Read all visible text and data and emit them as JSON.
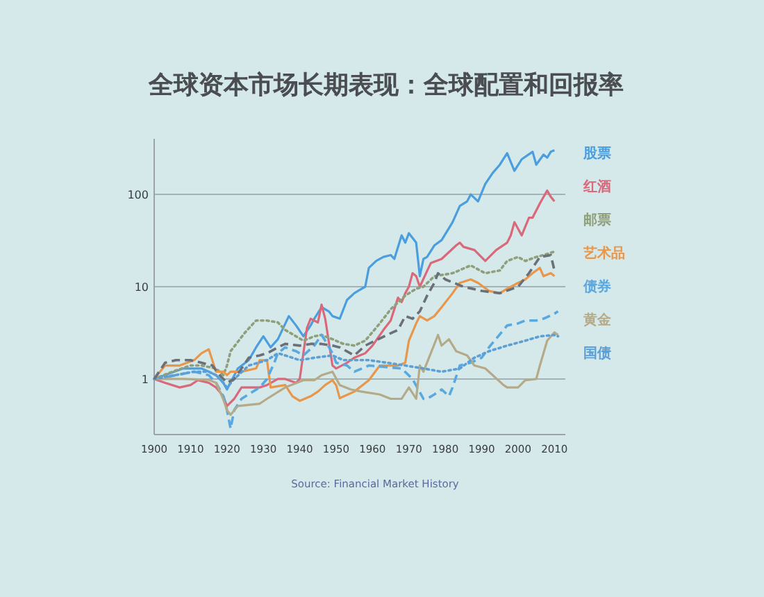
{
  "chart_data": {
    "type": "line",
    "title": "全球资本市场长期表现：全球配置和回报率",
    "annotations": [
      "Source: Financial Market History"
    ],
    "xlim": [
      1900,
      2013
    ],
    "xticks": [
      1900,
      1910,
      1920,
      1930,
      1940,
      1950,
      1960,
      1970,
      1980,
      1990,
      2000,
      2010
    ],
    "ylim": [
      0.25,
      400
    ],
    "yticks": [
      1,
      10,
      100
    ],
    "log": "y",
    "grid": "y",
    "legend": "right",
    "series": [
      {
        "name": "股票",
        "color": "#4a9ee0",
        "line_style": "solid",
        "x": [
          1900,
          1908,
          1913,
          1915,
          1917,
          1919,
          1920,
          1923,
          1926,
          1928,
          1930,
          1932,
          1934,
          1937,
          1939,
          1941,
          1943,
          1944,
          1946,
          1948,
          1949,
          1951,
          1953,
          1955,
          1956,
          1958,
          1959,
          1961,
          1963,
          1965,
          1966,
          1968,
          1969,
          1970,
          1972,
          1973,
          1974,
          1975,
          1977,
          1979,
          1982,
          1984,
          1986,
          1987,
          1989,
          1991,
          1993,
          1995,
          1997,
          1999,
          2001,
          2004,
          2005,
          2007,
          2008,
          2009,
          2010
        ],
        "values": [
          1,
          1.3,
          1.3,
          1.2,
          1.1,
          0.91,
          0.77,
          1.3,
          1.6,
          2.2,
          2.9,
          2.2,
          2.7,
          4.8,
          3.8,
          2.9,
          3.8,
          4.5,
          6,
          5.4,
          4.8,
          4.5,
          7.2,
          8.5,
          9,
          10,
          16,
          19,
          21,
          22,
          20,
          36,
          30,
          38,
          30,
          13,
          20,
          21,
          28,
          32,
          50,
          75,
          84,
          100,
          84,
          130,
          170,
          210,
          280,
          180,
          240,
          290,
          210,
          270,
          250,
          290,
          300
        ]
      },
      {
        "name": "红酒",
        "color": "#d9697a",
        "line_style": "solid",
        "x": [
          1900,
          1903,
          1907,
          1910,
          1912,
          1915,
          1917,
          1919,
          1920,
          1922,
          1924,
          1929,
          1931,
          1934,
          1936,
          1939,
          1940,
          1942,
          1943,
          1945,
          1946,
          1947,
          1949,
          1950,
          1953,
          1955,
          1958,
          1960,
          1963,
          1965,
          1967,
          1968,
          1969,
          1970,
          1971,
          1972,
          1973,
          1976,
          1979,
          1983,
          1984,
          1985,
          1988,
          1991,
          1994,
          1997,
          1998,
          1999,
          2001,
          2003,
          2004,
          2006,
          2008,
          2009,
          2010
        ],
        "values": [
          1,
          0.91,
          0.81,
          0.86,
          0.97,
          0.91,
          0.81,
          0.65,
          0.51,
          0.61,
          0.81,
          0.81,
          0.86,
          1,
          1,
          0.91,
          1,
          3.6,
          4.5,
          4.1,
          6.4,
          4.5,
          1.4,
          1.3,
          1.5,
          1.7,
          1.9,
          2.3,
          3.4,
          4.3,
          7.6,
          6.8,
          8.5,
          10,
          14,
          13,
          10,
          18,
          20,
          28,
          30,
          27,
          25,
          19,
          25,
          30,
          36,
          50,
          36,
          56,
          56,
          80,
          110,
          94,
          84
        ]
      },
      {
        "name": "邮票",
        "color": "#8f9f7c",
        "line_style": "dotted",
        "x": [
          1900,
          1905,
          1910,
          1913,
          1917,
          1919,
          1920,
          1921,
          1925,
          1928,
          1931,
          1934,
          1936,
          1939,
          1941,
          1944,
          1946,
          1949,
          1952,
          1955,
          1958,
          1962,
          1965,
          1969,
          1972,
          1974,
          1977,
          1982,
          1987,
          1991,
          1995,
          1997,
          2000,
          2002,
          2005,
          2007,
          2010
        ],
        "values": [
          1,
          1.2,
          1.4,
          1.4,
          1.3,
          1.1,
          1.4,
          2,
          3.2,
          4.3,
          4.3,
          4.1,
          3.4,
          2.9,
          2.6,
          2.9,
          3,
          2.7,
          2.4,
          2.3,
          2.6,
          4,
          5.7,
          8,
          9.5,
          10,
          13,
          14,
          17,
          14,
          15,
          19,
          21,
          19,
          21,
          22,
          24
        ]
      },
      {
        "name": "艺术品",
        "color": "#e8964a",
        "line_style": "solid",
        "x": [
          1900,
          1903,
          1907,
          1911,
          1913,
          1915,
          1917,
          1919,
          1920,
          1921,
          1924,
          1928,
          1929,
          1931,
          1932,
          1936,
          1938,
          1940,
          1943,
          1945,
          1947,
          1949,
          1950,
          1951,
          1955,
          1959,
          1962,
          1964,
          1967,
          1969,
          1970,
          1972,
          1973,
          1975,
          1977,
          1979,
          1982,
          1984,
          1987,
          1989,
          1992,
          1995,
          1997,
          2000,
          2002,
          2004,
          2006,
          2007,
          2009,
          2010
        ],
        "values": [
          1,
          1.4,
          1.4,
          1.6,
          1.9,
          2.1,
          1.2,
          1.2,
          1.1,
          1.2,
          1.2,
          1.3,
          1.6,
          1.6,
          0.81,
          0.86,
          0.65,
          0.58,
          0.65,
          0.73,
          0.86,
          0.97,
          0.86,
          0.62,
          0.73,
          0.97,
          1.4,
          1.4,
          1.4,
          1.5,
          2.6,
          4,
          4.8,
          4.3,
          4.8,
          6,
          8.5,
          11,
          12,
          11,
          9,
          8.5,
          9.5,
          11,
          12,
          14,
          16,
          13,
          14,
          13
        ]
      },
      {
        "name": "债券",
        "color": "#5aa8e0",
        "line_style": "dashed",
        "x": [
          1900,
          1906,
          1911,
          1915,
          1917,
          1919,
          1920,
          1921,
          1922,
          1924,
          1929,
          1931,
          1933,
          1934,
          1936,
          1939,
          1941,
          1944,
          1946,
          1947,
          1949,
          1950,
          1953,
          1955,
          1959,
          1968,
          1971,
          1974,
          1975,
          1977,
          1979,
          1981,
          1982,
          1984,
          1987,
          1990,
          1992,
          1997,
          2000,
          2002,
          2005,
          2007,
          2010,
          2011
        ],
        "values": [
          1,
          1.1,
          1.2,
          1.1,
          0.91,
          0.65,
          0.46,
          0.29,
          0.46,
          0.61,
          0.81,
          1,
          1.5,
          1.9,
          2.2,
          2,
          1.8,
          2.3,
          3,
          2.6,
          1.9,
          1.5,
          1.4,
          1.2,
          1.4,
          1.3,
          1,
          0.61,
          0.61,
          0.68,
          0.77,
          0.65,
          0.81,
          1.4,
          1.5,
          1.7,
          2.2,
          3.8,
          4,
          4.3,
          4.3,
          4.5,
          5.1,
          5.4
        ]
      },
      {
        "name": "黄金",
        "color": "#b5aa88",
        "line_style": "solid",
        "x": [
          1900,
          1908,
          1915,
          1917,
          1919,
          1920,
          1921,
          1923,
          1929,
          1931,
          1936,
          1941,
          1944,
          1946,
          1949,
          1951,
          1954,
          1957,
          1962,
          1965,
          1968,
          1970,
          1972,
          1973,
          1974,
          1978,
          1979,
          1981,
          1983,
          1986,
          1988,
          1991,
          1996,
          1997,
          2000,
          2002,
          2005,
          2006,
          2008,
          2010,
          2011
        ],
        "values": [
          1,
          1,
          0.98,
          0.91,
          0.6,
          0.46,
          0.41,
          0.51,
          0.54,
          0.61,
          0.81,
          0.97,
          0.97,
          1.1,
          1.2,
          0.86,
          0.77,
          0.73,
          0.68,
          0.61,
          0.61,
          0.81,
          0.61,
          1.4,
          1.2,
          3,
          2.3,
          2.7,
          2,
          1.8,
          1.4,
          1.3,
          0.86,
          0.81,
          0.81,
          0.97,
          1,
          1.4,
          2.6,
          3.2,
          3
        ]
      },
      {
        "name": "国债",
        "color": "#5c9fd6",
        "line_style": "dotted",
        "x": [
          1900,
          1911,
          1915,
          1917,
          1919,
          1920,
          1922,
          1926,
          1931,
          1934,
          1936,
          1940,
          1944,
          1949,
          1952,
          1954,
          1959,
          1964,
          1969,
          1974,
          1979,
          1984,
          1988,
          1992,
          1997,
          2002,
          2006,
          2010,
          2011
        ],
        "values": [
          1,
          1.2,
          1.2,
          1.1,
          0.91,
          0.81,
          1,
          1.4,
          1.6,
          1.9,
          1.8,
          1.6,
          1.7,
          1.8,
          1.6,
          1.6,
          1.6,
          1.5,
          1.4,
          1.3,
          1.2,
          1.3,
          1.7,
          2,
          2.3,
          2.6,
          2.9,
          3,
          2.9
        ]
      },
      {
        "color": "#6a6f78",
        "line_style": "dashed",
        "x": [
          1900,
          1903,
          1906,
          1910,
          1913,
          1916,
          1918,
          1920,
          1922,
          1924,
          1926,
          1929,
          1931,
          1934,
          1936,
          1940,
          1943,
          1946,
          1949,
          1951,
          1955,
          1958,
          1964,
          1967,
          1969,
          1971,
          1973,
          1975,
          1977,
          1978,
          1980,
          1985,
          1990,
          1995,
          2000,
          2003,
          2006,
          2009,
          2010
        ],
        "values": [
          1,
          1.5,
          1.6,
          1.6,
          1.5,
          1.4,
          1.1,
          0.91,
          1,
          1.3,
          1.7,
          1.8,
          1.9,
          2.2,
          2.4,
          2.3,
          2.4,
          2.4,
          2.3,
          2.2,
          1.8,
          2.3,
          3,
          3.4,
          4.8,
          4.5,
          5.4,
          8,
          11,
          14,
          12,
          10,
          9,
          8.5,
          10,
          14,
          21,
          22,
          15
        ]
      }
    ]
  }
}
